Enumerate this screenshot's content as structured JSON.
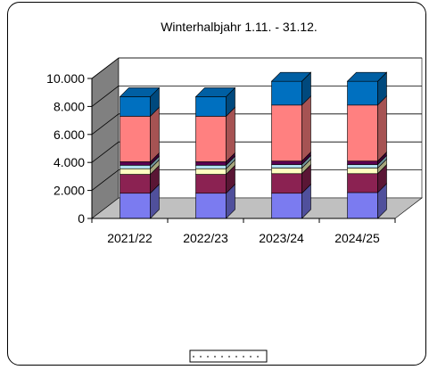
{
  "chart_data": {
    "type": "bar",
    "stacked": true,
    "three_d": true,
    "title": "Winterhalbjahr 1.11. - 31.12.",
    "categories": [
      "2021/22",
      "2022/23",
      "2023/24",
      "2024/25"
    ],
    "ylim": [
      0,
      10000
    ],
    "yticks": [
      0,
      2000,
      4000,
      6000,
      8000,
      10000
    ],
    "ytick_labels": [
      "0",
      "2.000",
      "4.000",
      "6.000",
      "8.000",
      "10.000"
    ],
    "grid": true,
    "series": [
      {
        "color": "#7B7BF0",
        "values": [
          1800,
          1800,
          1800,
          1850
        ]
      },
      {
        "color": "#8B2252",
        "values": [
          1350,
          1350,
          1400,
          1350
        ]
      },
      {
        "color": "#FFFFC0",
        "values": [
          400,
          400,
          400,
          400
        ]
      },
      {
        "color": "#B0E0F0",
        "values": [
          250,
          250,
          250,
          250
        ]
      },
      {
        "color": "#5A0050",
        "values": [
          250,
          250,
          250,
          250
        ]
      },
      {
        "color": "#FF8080",
        "values": [
          3250,
          3250,
          4000,
          4000
        ]
      },
      {
        "color": "#0070C0",
        "values": [
          1400,
          1400,
          1700,
          1700
        ]
      }
    ],
    "legend": "bottom"
  }
}
